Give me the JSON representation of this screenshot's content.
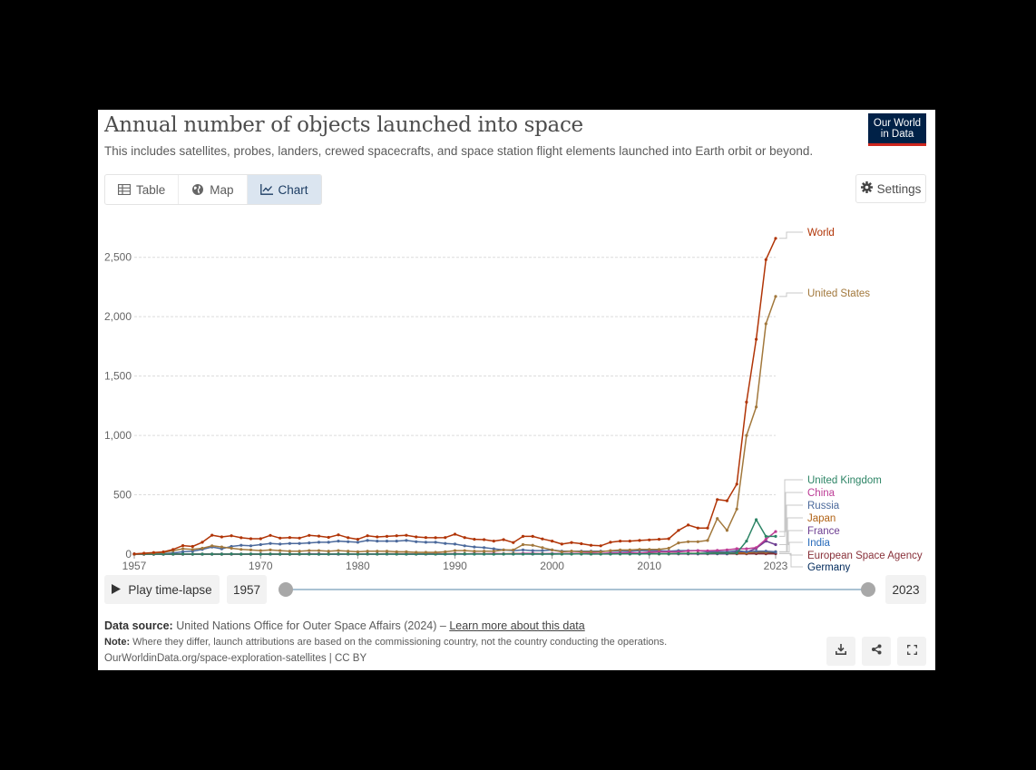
{
  "header": {
    "title": "Annual number of objects launched into space",
    "subtitle": "This includes satellites, probes, landers, crewed spacecrafts, and space station flight elements launched into Earth orbit or beyond.",
    "logo_line1": "Our World",
    "logo_line2": "in Data"
  },
  "tabs": [
    {
      "label": "Table",
      "icon": "table-icon",
      "active": false
    },
    {
      "label": "Map",
      "icon": "globe-icon",
      "active": false
    },
    {
      "label": "Chart",
      "icon": "line-chart-icon",
      "active": true
    }
  ],
  "settings_label": "Settings",
  "controls": {
    "play_label": "Play time-lapse",
    "start_year": "1957",
    "end_year": "2023"
  },
  "footer": {
    "source_label": "Data source:",
    "source_text": "United Nations Office for Outer Space Affairs (2024) –",
    "source_link": "Learn more about this data",
    "note_label": "Note:",
    "note_text": "Where they differ, launch attributions are based on the commissioning country, not the country conducting the operations.",
    "url": "OurWorldinData.org/space-exploration-satellites | CC BY"
  },
  "chart_data": {
    "type": "line",
    "title": "Annual number of objects launched into space",
    "subtitle": "This includes satellites, probes, landers, crewed spacecrafts, and space station flight elements launched into Earth orbit or beyond.",
    "xlabel": "",
    "ylabel": "",
    "xlim": [
      1957,
      2023
    ],
    "ylim": [
      0,
      2750
    ],
    "x_ticks": [
      1957,
      1970,
      1980,
      1990,
      2000,
      2010,
      2023
    ],
    "y_ticks": [
      0,
      500,
      1000,
      1500,
      2000,
      2500
    ],
    "y_tick_labels": [
      "0",
      "500",
      "1,000",
      "1,500",
      "2,000",
      "2,500"
    ],
    "grid": "horizontal dotted",
    "legend": "labels at line ends (right)",
    "x": [
      1957,
      1958,
      1959,
      1960,
      1961,
      1962,
      1963,
      1964,
      1965,
      1966,
      1967,
      1968,
      1969,
      1970,
      1971,
      1972,
      1973,
      1974,
      1975,
      1976,
      1977,
      1978,
      1979,
      1980,
      1981,
      1982,
      1983,
      1984,
      1985,
      1986,
      1987,
      1988,
      1989,
      1990,
      1991,
      1992,
      1993,
      1994,
      1995,
      1996,
      1997,
      1998,
      1999,
      2000,
      2001,
      2002,
      2003,
      2004,
      2005,
      2006,
      2007,
      2008,
      2009,
      2010,
      2011,
      2012,
      2013,
      2014,
      2015,
      2016,
      2017,
      2018,
      2019,
      2020,
      2021,
      2022,
      2023
    ],
    "series": [
      {
        "name": "World",
        "color": "#b13507",
        "values": [
          2,
          8,
          14,
          19,
          40,
          72,
          65,
          100,
          160,
          145,
          155,
          138,
          130,
          130,
          158,
          135,
          140,
          135,
          158,
          152,
          141,
          163,
          138,
          125,
          155,
          145,
          150,
          155,
          159,
          145,
          140,
          138,
          140,
          168,
          140,
          125,
          122,
          110,
          122,
          98,
          150,
          150,
          128,
          110,
          85,
          98,
          88,
          75,
          70,
          100,
          110,
          110,
          115,
          120,
          125,
          130,
          200,
          245,
          220,
          220,
          460,
          450,
          590,
          1280,
          1810,
          2480,
          2660
        ]
      },
      {
        "name": "United States",
        "color": "#a2783c",
        "values": [
          0,
          5,
          10,
          15,
          30,
          45,
          40,
          50,
          70,
          60,
          50,
          40,
          35,
          30,
          35,
          30,
          25,
          25,
          30,
          30,
          25,
          30,
          25,
          20,
          25,
          25,
          25,
          20,
          20,
          15,
          15,
          15,
          20,
          30,
          30,
          25,
          25,
          25,
          35,
          35,
          80,
          75,
          55,
          35,
          20,
          25,
          20,
          20,
          20,
          30,
          35,
          35,
          40,
          40,
          40,
          50,
          95,
          105,
          105,
          115,
          300,
          200,
          380,
          1000,
          1240,
          1940,
          2170
        ]
      },
      {
        "name": "United Kingdom",
        "color": "#2c8465",
        "values": [
          0,
          0,
          0,
          0,
          0,
          1,
          0,
          0,
          0,
          0,
          1,
          0,
          1,
          0,
          1,
          0,
          0,
          1,
          0,
          0,
          0,
          1,
          1,
          0,
          1,
          0,
          1,
          0,
          0,
          0,
          1,
          0,
          1,
          1,
          2,
          1,
          1,
          0,
          1,
          1,
          1,
          2,
          1,
          2,
          1,
          1,
          2,
          1,
          1,
          1,
          2,
          2,
          2,
          3,
          3,
          3,
          5,
          5,
          5,
          6,
          7,
          8,
          10,
          110,
          290,
          150,
          150
        ]
      },
      {
        "name": "China",
        "color": "#bc3b95",
        "values": [
          0,
          0,
          0,
          0,
          0,
          0,
          0,
          0,
          0,
          0,
          0,
          0,
          0,
          1,
          1,
          0,
          0,
          1,
          3,
          3,
          1,
          1,
          1,
          1,
          2,
          1,
          2,
          2,
          1,
          2,
          2,
          4,
          2,
          4,
          2,
          4,
          2,
          5,
          2,
          2,
          7,
          7,
          3,
          5,
          3,
          5,
          7,
          9,
          6,
          9,
          10,
          12,
          10,
          16,
          20,
          20,
          19,
          27,
          30,
          28,
          31,
          36,
          46,
          45,
          55,
          125,
          190
        ]
      },
      {
        "name": "Russia",
        "color": "#4c6a9c",
        "values": [
          2,
          3,
          4,
          4,
          10,
          20,
          25,
          40,
          60,
          45,
          65,
          75,
          70,
          80,
          90,
          85,
          90,
          90,
          95,
          100,
          100,
          110,
          105,
          100,
          115,
          110,
          110,
          110,
          115,
          105,
          100,
          100,
          90,
          85,
          70,
          60,
          55,
          45,
          35,
          30,
          35,
          30,
          30,
          35,
          25,
          25,
          25,
          25,
          25,
          25,
          25,
          25,
          30,
          30,
          30,
          25,
          30,
          30,
          30,
          20,
          20,
          20,
          30,
          20,
          25,
          25,
          20
        ]
      },
      {
        "name": "Japan",
        "color": "#b16214",
        "values": [
          0,
          0,
          0,
          0,
          0,
          0,
          0,
          0,
          0,
          0,
          0,
          0,
          0,
          1,
          2,
          1,
          0,
          1,
          1,
          2,
          2,
          2,
          2,
          2,
          2,
          2,
          4,
          4,
          3,
          3,
          4,
          4,
          3,
          4,
          2,
          3,
          3,
          3,
          2,
          5,
          3,
          4,
          3,
          2,
          2,
          4,
          4,
          2,
          3,
          4,
          3,
          4,
          5,
          4,
          3,
          4,
          6,
          7,
          8,
          7,
          11,
          9,
          9,
          10,
          17,
          15,
          20
        ]
      },
      {
        "name": "France",
        "color": "#6d3e91",
        "values": [
          0,
          0,
          0,
          0,
          0,
          0,
          0,
          0,
          0,
          1,
          2,
          0,
          0,
          1,
          1,
          1,
          1,
          2,
          3,
          0,
          1,
          0,
          1,
          1,
          2,
          1,
          1,
          1,
          2,
          1,
          1,
          1,
          2,
          1,
          1,
          3,
          2,
          2,
          2,
          2,
          2,
          1,
          2,
          1,
          2,
          2,
          3,
          1,
          2,
          2,
          2,
          2,
          2,
          2,
          2,
          3,
          3,
          3,
          2,
          4,
          3,
          2,
          20,
          15,
          50,
          110,
          80
        ]
      },
      {
        "name": "India",
        "color": "#286bbb",
        "values": [
          0,
          0,
          0,
          0,
          0,
          0,
          0,
          0,
          0,
          0,
          0,
          0,
          0,
          0,
          0,
          0,
          0,
          0,
          1,
          0,
          0,
          0,
          1,
          1,
          1,
          1,
          1,
          1,
          0,
          0,
          1,
          1,
          0,
          1,
          0,
          1,
          1,
          1,
          1,
          1,
          1,
          1,
          2,
          1,
          2,
          2,
          2,
          2,
          2,
          2,
          3,
          3,
          4,
          3,
          4,
          4,
          5,
          6,
          6,
          8,
          9,
          12,
          10,
          11,
          16,
          15,
          18
        ]
      },
      {
        "name": "European Space Agency",
        "color": "#883039",
        "values": [
          0,
          0,
          0,
          0,
          0,
          0,
          0,
          0,
          0,
          0,
          0,
          0,
          0,
          0,
          0,
          0,
          0,
          0,
          1,
          1,
          1,
          2,
          1,
          1,
          2,
          1,
          2,
          2,
          3,
          2,
          1,
          2,
          2,
          2,
          2,
          2,
          2,
          2,
          3,
          2,
          2,
          2,
          2,
          2,
          2,
          3,
          2,
          2,
          2,
          2,
          2,
          2,
          2,
          3,
          3,
          2,
          3,
          3,
          3,
          3,
          4,
          4,
          3,
          3,
          4,
          3,
          4
        ]
      },
      {
        "name": "Germany",
        "color": "#00295b",
        "values": [
          0,
          0,
          0,
          0,
          0,
          0,
          0,
          0,
          0,
          0,
          0,
          0,
          1,
          1,
          1,
          1,
          1,
          1,
          1,
          1,
          1,
          1,
          1,
          1,
          1,
          1,
          1,
          1,
          1,
          1,
          1,
          1,
          1,
          2,
          2,
          2,
          2,
          2,
          2,
          2,
          2,
          2,
          3,
          3,
          4,
          3,
          3,
          3,
          4,
          3,
          4,
          3,
          3,
          4,
          4,
          3,
          4,
          4,
          4,
          4,
          5,
          5,
          5,
          6,
          7,
          6,
          6
        ]
      }
    ]
  }
}
